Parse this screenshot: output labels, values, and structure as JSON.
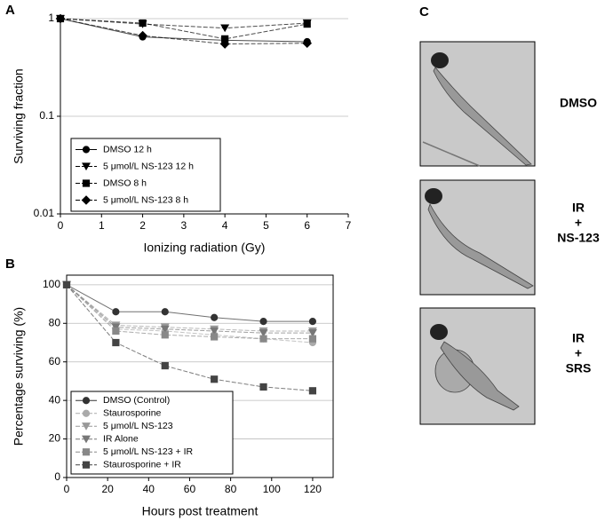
{
  "panel_labels": [
    "A",
    "B",
    "C"
  ],
  "images": [
    {
      "lines": [
        "DMSO"
      ]
    },
    {
      "lines": [
        "IR",
        "+",
        "NS-123"
      ]
    },
    {
      "lines": [
        "IR",
        "+",
        "SRS"
      ]
    }
  ],
  "chart_data": [
    {
      "type": "line",
      "yscale": "log",
      "grid": true,
      "xlabel": "Ionizing radiation (Gy)",
      "ylabel": "Surviving fraction",
      "x": [
        0,
        2,
        4,
        6
      ],
      "xlim": [
        0,
        7
      ],
      "xticks": [
        0,
        1,
        2,
        3,
        4,
        5,
        6,
        7
      ],
      "ylim": [
        0.01,
        1
      ],
      "yticks": [
        0.01,
        0.1,
        1
      ],
      "series": [
        {
          "name": "DMSO 12 h",
          "color": "#000000",
          "marker": "circle",
          "values": [
            1,
            0.65,
            0.6,
            0.58
          ]
        },
        {
          "name": "5 μmol/L NS-123 12 h",
          "color": "#000000",
          "marker": "triangle-down",
          "values": [
            1,
            0.88,
            0.8,
            0.9
          ]
        },
        {
          "name": "DMSO 8 h",
          "color": "#000000",
          "marker": "square",
          "values": [
            1,
            0.9,
            0.62,
            0.88
          ]
        },
        {
          "name": "5 μmol/L NS-123 8 h",
          "color": "#000000",
          "marker": "diamond",
          "values": [
            1,
            0.67,
            0.55,
            0.56
          ]
        }
      ]
    },
    {
      "type": "line",
      "grid": true,
      "xlabel": "Hours post treatment",
      "ylabel": "Percentage surviving (%)",
      "x": [
        0,
        24,
        48,
        72,
        96,
        120
      ],
      "xlim": [
        0,
        130
      ],
      "xticks": [
        0,
        20,
        40,
        60,
        80,
        100,
        120
      ],
      "ylim": [
        0,
        105
      ],
      "yticks": [
        0,
        20,
        40,
        60,
        80,
        100
      ],
      "series": [
        {
          "name": "DMSO (Control)",
          "color": "#333333",
          "marker": "circle",
          "values": [
            100,
            86,
            86,
            83,
            81,
            81
          ]
        },
        {
          "name": "Staurosporine",
          "color": "#aaaaaa",
          "marker": "circle",
          "values": [
            100,
            77,
            76,
            74,
            72,
            70
          ]
        },
        {
          "name": "5 μmol/L NS-123",
          "color": "#999999",
          "marker": "triangle-down",
          "values": [
            100,
            79,
            78,
            77,
            76,
            76
          ]
        },
        {
          "name": "IR Alone",
          "color": "#777777",
          "marker": "triangle-down",
          "values": [
            100,
            78,
            77,
            76,
            75,
            75
          ]
        },
        {
          "name": "5 μmol/L NS-123 + IR",
          "color": "#888888",
          "marker": "square",
          "values": [
            100,
            76,
            74,
            73,
            72,
            72
          ]
        },
        {
          "name": "Staurosporine + IR",
          "color": "#444444",
          "marker": "square",
          "values": [
            100,
            70,
            58,
            51,
            47,
            45
          ]
        }
      ]
    }
  ]
}
